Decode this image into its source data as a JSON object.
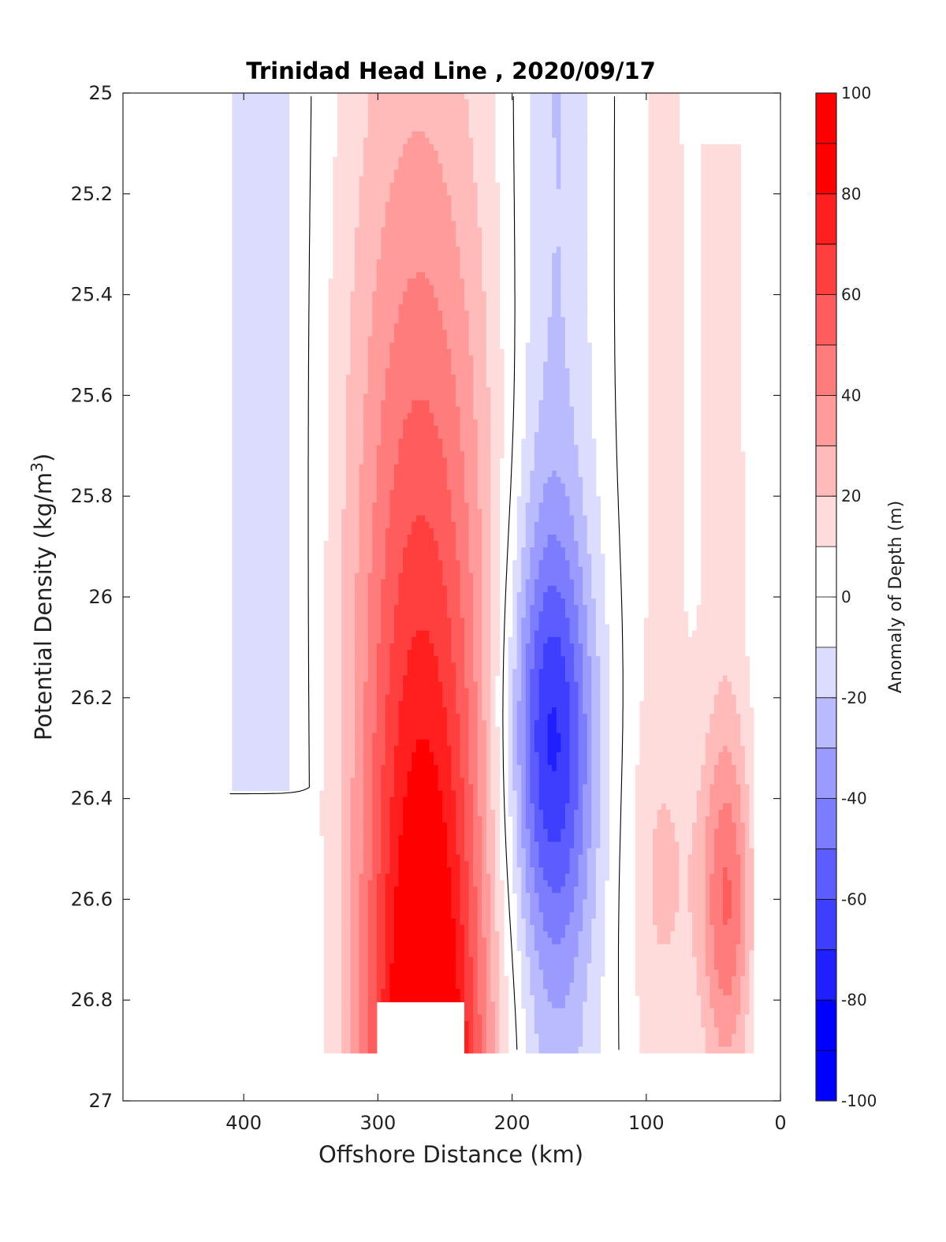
{
  "chart_data": {
    "type": "heatmap",
    "title": "Trinidad Head Line , 2020/09/17",
    "xlabel": "Offshore Distance (km)",
    "ylabel_main": "Potential Density (kg/m",
    "ylabel_sup": "3",
    "ylabel_end": ")",
    "colorbar_label": "Anomaly of Depth (m)",
    "x_reversed": true,
    "xlim": [
      490,
      0
    ],
    "ylim": [
      25,
      27
    ],
    "y_reversed": true,
    "x_ticks": [
      400,
      300,
      200,
      100,
      0
    ],
    "x_tick_labels": [
      "400",
      "300",
      "200",
      "100",
      "0"
    ],
    "y_ticks": [
      25,
      25.2,
      25.4,
      25.6,
      25.8,
      26,
      26.2,
      26.4,
      26.6,
      26.8,
      27
    ],
    "y_tick_labels": [
      "25",
      "25.2",
      "25.4",
      "25.6",
      "25.8",
      "26",
      "26.2",
      "26.4",
      "26.6",
      "26.8",
      "27"
    ],
    "colorbar_range": [
      -100,
      100
    ],
    "colorbar_ticks": [
      100,
      80,
      60,
      40,
      20,
      0,
      -20,
      -40,
      -60,
      -80,
      -100
    ],
    "colorbar_tick_labels": [
      "100",
      "80",
      "60",
      "40",
      "20",
      "0",
      "-20",
      "-40",
      "-60",
      "-80",
      "-100"
    ],
    "colormap": [
      "#0000ff",
      "#1f1fff",
      "#3e3eff",
      "#5d5dff",
      "#7c7cff",
      "#9b9bff",
      "#babaff",
      "#dcdcff",
      "#ffffff",
      "#ffffff",
      "#ffdcdc",
      "#ffbaba",
      "#ff9b9b",
      "#ff7c7c",
      "#ff5d5d",
      "#ff3e3e",
      "#ff1f1f",
      "#ff0000"
    ],
    "contour_levels_step": 10,
    "zero_contour_color": "#000000",
    "features": [
      {
        "name": "warm core",
        "peak_anomaly": 100,
        "x_center": 265,
        "y_range": [
          25.0,
          26.9
        ]
      },
      {
        "name": "cold core",
        "peak_anomaly": -70,
        "x_center": 170,
        "y_range": [
          25.0,
          26.9
        ]
      },
      {
        "name": "weak offshore cold band",
        "peak_anomaly": -20,
        "x_center": 385,
        "y_range": [
          25.0,
          26.4
        ]
      },
      {
        "name": "nearshore warm band",
        "peak_anomaly": 50,
        "x_center": 40,
        "y_range": [
          25.1,
          26.9
        ]
      }
    ]
  }
}
